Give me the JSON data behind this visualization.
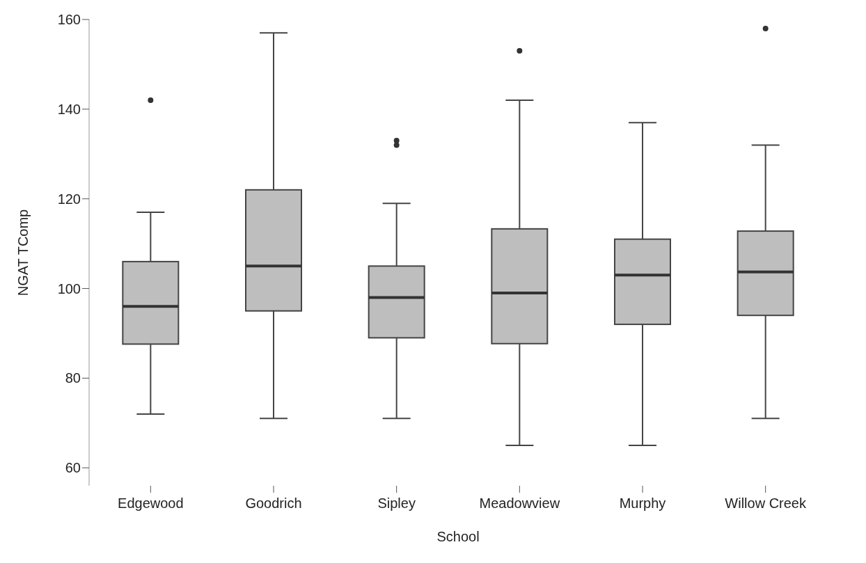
{
  "chart_data": {
    "type": "box",
    "xlabel": "School",
    "ylabel": "NGAT TComp",
    "categories": [
      "Edgewood",
      "Goodrich",
      "Sipley",
      "Meadowview",
      "Murphy",
      "Willow Creek"
    ],
    "boxes": [
      {
        "low": 72,
        "q1": 87.6,
        "median": 96,
        "q3": 106,
        "high": 117,
        "outliers": [
          142
        ]
      },
      {
        "low": 71,
        "q1": 95,
        "median": 105,
        "q3": 122,
        "high": 157
      },
      {
        "low": 71,
        "q1": 89,
        "median": 98,
        "q3": 105,
        "high": 119,
        "outliers": [
          132,
          133
        ]
      },
      {
        "low": 65,
        "q1": 87.7,
        "median": 99,
        "q3": 113.3,
        "high": 142,
        "outliers": [
          153
        ]
      },
      {
        "low": 65,
        "q1": 92,
        "median": 103,
        "q3": 111,
        "high": 137
      },
      {
        "low": 71,
        "q1": 94,
        "median": 103.7,
        "q3": 112.8,
        "high": 132,
        "outliers": [
          158
        ]
      }
    ],
    "color": "#bebebe",
    "ylim": [
      56,
      160
    ],
    "yticks": [
      60,
      80,
      100,
      120,
      140,
      160
    ],
    "grid": false
  }
}
